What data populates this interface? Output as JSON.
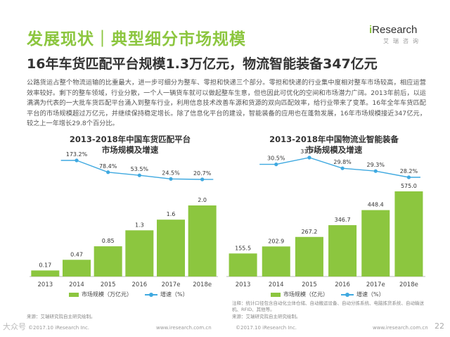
{
  "header": {
    "title": "发展现状｜典型细分市场规模",
    "subtitle": "16年车货匹配平台规模1.3万亿元，物流智能装备347亿元",
    "logo_main_i": "i",
    "logo_main_rest": "Research",
    "logo_sub": "艾瑞咨询"
  },
  "body": "公路货运占整个物流运输的比重最大，进一步可细分为整车、零担和快递三个部分。零担和快递的行业集中度相对整车市场较高，相应运营效率较好。剩下的整车领域，行业分散，一个人一辆货车就可以做起整车生意，但也因此可优化的空间和市场潜力广阔。2013年前后，以运满满为代表的一大批车货匹配平台涌入到整车行业，利用信息技术改善车源和货源的双向匹配效率，给行业带来了变革。16年全年车货匹配平台的市场规模超过万亿元，并继续保持稳定增长。除了信息化平台的建设，智能装备的应用也在蓬勃发展，16年市场规模接近347亿元，较之上一年增长29.8个百分比。",
  "colors": {
    "bar": "#8cc63f",
    "line": "#3fa9e0",
    "accent": "#8cc63f"
  },
  "chart_data": [
    {
      "type": "bar",
      "title": "2013-2018年中国车货匹配平台市场规模及增速",
      "title_line1": "2013-2018年中国车货匹配平台",
      "title_line2": "市场规模及增速",
      "categories": [
        "2013",
        "2014",
        "2015",
        "2016",
        "2017e",
        "2018e"
      ],
      "series": [
        {
          "name": "市场规模（万亿元）",
          "values": [
            0.17,
            0.47,
            0.85,
            1.3,
            1.6,
            2.0
          ],
          "labels": [
            "0.17",
            "0.47",
            "0.85",
            "1.3",
            "1.6",
            "2.0"
          ]
        },
        {
          "name": "增速（%）",
          "type": "line",
          "values": [
            null,
            173.2,
            78.4,
            53.5,
            24.5,
            20.7
          ],
          "labels": [
            "",
            "173.2%",
            "78.4%",
            "53.5%",
            "24.5%",
            "20.7%"
          ]
        }
      ],
      "ylim": [
        0,
        2.3
      ],
      "ylim_line": [
        0,
        450
      ],
      "legend_bar": "市场规模（万亿元）",
      "legend_line": "增速（%）",
      "source": "来源：艾瑞研究院自主研究绘制。"
    },
    {
      "type": "bar",
      "title": "2013-2018年中国物流业智能装备市场规模及增速",
      "title_line1": "2013-2018年中国物流业智能装备",
      "title_line2": "市场规模及增速",
      "categories": [
        "2013",
        "2014",
        "2015",
        "2016",
        "2017e",
        "2018e"
      ],
      "series": [
        {
          "name": "市场规模（亿元）",
          "values": [
            155.5,
            202.9,
            267.2,
            346.7,
            448.4,
            575.0
          ],
          "labels": [
            "155.5",
            "202.9",
            "267.2",
            "346.7",
            "448.4",
            "575.0"
          ]
        },
        {
          "name": "增速（%）",
          "type": "line",
          "values": [
            null,
            30.5,
            31.7,
            29.8,
            29.3,
            28.2
          ],
          "labels": [
            "",
            "30.5%",
            "31.7%",
            "29.8%",
            "29.3%",
            "28.2%"
          ]
        }
      ],
      "ylim": [
        0,
        650
      ],
      "ylim_line": [
        0,
        50
      ],
      "legend_bar": "市场规模（亿元）",
      "legend_line": "增速（%）",
      "note": "注释：统计口径包含自动化立体仓储、自动搬运设备、自动分拣系统、电脑拣货系统、自动输送机、RFID、其他等。",
      "source": "来源：艾瑞研究院自主研究绘制。"
    }
  ],
  "footer": {
    "left_copy": "©2017.10 iResearch Inc.",
    "left_url": "www.iresearch.com.cn",
    "right_copy": "©2017.10 iResearch Inc.",
    "right_url": "www.iresearch.com.cn",
    "page": "22",
    "watermark": "大众号"
  }
}
